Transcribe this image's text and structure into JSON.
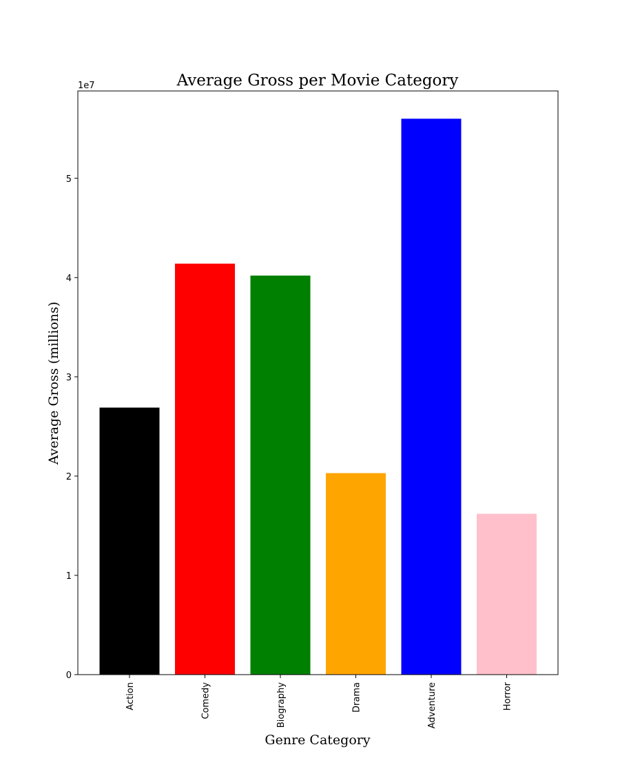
{
  "chart_data": {
    "type": "bar",
    "title": "Average Gross per Movie Category",
    "xlabel": "Genre Category",
    "ylabel": "Average Gross (millions)",
    "y_offset_label": "1e7",
    "categories": [
      "Action",
      "Comedy",
      "Biography",
      "Drama",
      "Adventure",
      "Horror"
    ],
    "values": [
      26900000,
      41400000,
      40200000,
      20300000,
      56000000,
      16200000
    ],
    "colors": [
      "#000000",
      "#ff0000",
      "#008000",
      "#ffa500",
      "#0000ff",
      "#ffc0cb"
    ],
    "ylim": [
      0,
      58800000
    ],
    "y_ticks": [
      0,
      1,
      2,
      3,
      4,
      5
    ],
    "y_tick_scale": 10000000,
    "grid": false,
    "legend": "none",
    "xtick_rotation": "vertical"
  }
}
